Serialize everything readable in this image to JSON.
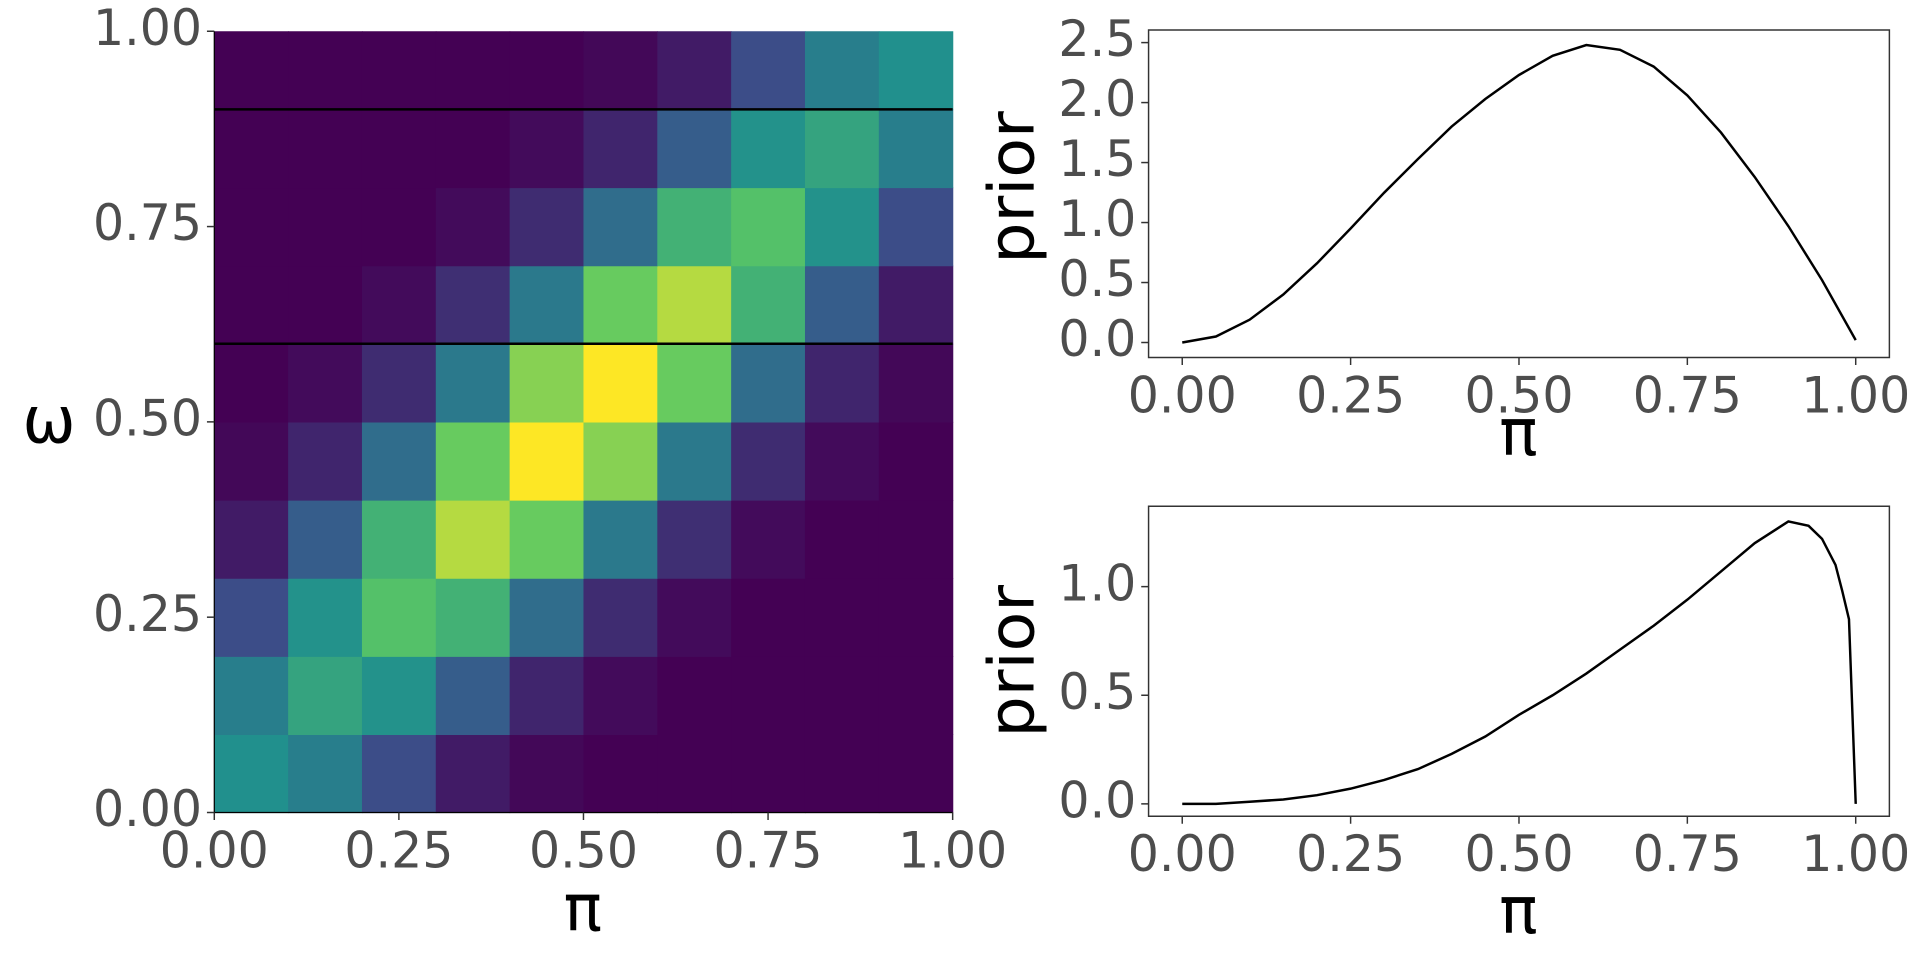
{
  "chart_data": [
    {
      "type": "heatmap",
      "x_label": "π",
      "y_label": "ω",
      "colormap": "viridis",
      "x": [
        0.05,
        0.15,
        0.25,
        0.35,
        0.45,
        0.55,
        0.65,
        0.75,
        0.85,
        0.95
      ],
      "y": [
        0.05,
        0.15,
        0.25,
        0.35,
        0.45,
        0.55,
        0.65,
        0.75,
        0.85,
        0.95
      ],
      "z": [
        [
          0.49,
          0.42,
          0.23,
          0.08,
          0.02,
          0.0,
          0,
          0,
          0,
          0
        ],
        [
          0.42,
          0.57,
          0.5,
          0.29,
          0.11,
          0.03,
          0.0,
          0,
          0,
          0
        ],
        [
          0.23,
          0.5,
          0.7,
          0.63,
          0.35,
          0.13,
          0.03,
          0.0,
          0,
          0
        ],
        [
          0.08,
          0.29,
          0.63,
          0.87,
          0.75,
          0.4,
          0.14,
          0.03,
          0.0,
          0
        ],
        [
          0.02,
          0.11,
          0.35,
          0.75,
          0.98,
          0.8,
          0.4,
          0.13,
          0.03,
          0.0
        ],
        [
          0.0,
          0.03,
          0.13,
          0.4,
          0.8,
          0.98,
          0.75,
          0.35,
          0.11,
          0.02
        ],
        [
          0,
          0.0,
          0.03,
          0.14,
          0.4,
          0.75,
          0.87,
          0.63,
          0.29,
          0.08
        ],
        [
          0,
          0,
          0.0,
          0.03,
          0.13,
          0.35,
          0.63,
          0.7,
          0.5,
          0.23
        ],
        [
          0,
          0,
          0,
          0.0,
          0.03,
          0.11,
          0.29,
          0.5,
          0.57,
          0.42
        ],
        [
          0,
          0,
          0,
          0,
          0.0,
          0.02,
          0.08,
          0.23,
          0.42,
          0.49
        ]
      ],
      "hlines": [
        0.9,
        0.6
      ],
      "hline_color": "#000000",
      "xlim": [
        0,
        1
      ],
      "ylim": [
        0,
        1
      ],
      "xticks": [
        {
          "value": 0,
          "label": "0.00"
        },
        0.25,
        {
          "value": 0.5,
          "label": "0.50"
        },
        0.75,
        {
          "value": 1,
          "label": "1.00"
        }
      ],
      "yticks": [
        {
          "value": 0,
          "label": "0.00"
        },
        0.25,
        {
          "value": 0.5,
          "label": "0.50"
        },
        0.75,
        {
          "value": 1,
          "label": "1.00"
        }
      ]
    },
    {
      "type": "line",
      "x_label": "π",
      "y_label": "prior",
      "color": "#000000",
      "x": [
        0,
        0.05,
        0.1,
        0.15,
        0.2,
        0.25,
        0.3,
        0.35,
        0.4,
        0.45,
        0.5,
        0.55,
        0.6,
        0.65,
        0.7,
        0.75,
        0.8,
        0.85,
        0.9,
        0.95,
        1
      ],
      "values": [
        0,
        0.05,
        0.19,
        0.4,
        0.66,
        0.95,
        1.25,
        1.53,
        1.8,
        2.03,
        2.23,
        2.39,
        2.48,
        2.44,
        2.3,
        2.06,
        1.75,
        1.38,
        0.97,
        0.52,
        0.02
      ],
      "xlim": [
        -0.05,
        1.05
      ],
      "ylim": [
        -0.125,
        2.605
      ],
      "xticks": [
        {
          "value": 0,
          "label": "0.00"
        },
        0.25,
        {
          "value": 0.5,
          "label": "0.50"
        },
        0.75,
        {
          "value": 1,
          "label": "1.00"
        }
      ],
      "yticks": [
        {
          "value": 0,
          "label": "0.0"
        },
        0.5,
        {
          "value": 1,
          "label": "1.0"
        },
        1.5,
        {
          "value": 2,
          "label": "2.0"
        },
        2.5
      ]
    },
    {
      "type": "line",
      "x_label": "π",
      "y_label": "prior",
      "color": "#000000",
      "x": [
        0,
        0.05,
        0.1,
        0.15,
        0.2,
        0.25,
        0.3,
        0.35,
        0.4,
        0.45,
        0.5,
        0.55,
        0.6,
        0.65,
        0.7,
        0.75,
        0.8,
        0.85,
        0.9,
        0.93,
        0.95,
        0.97,
        0.98,
        0.99,
        1
      ],
      "values": [
        0,
        0,
        0.01,
        0.02,
        0.04,
        0.07,
        0.11,
        0.16,
        0.23,
        0.31,
        0.41,
        0.5,
        0.6,
        0.71,
        0.82,
        0.94,
        1.07,
        1.2,
        1.3,
        1.28,
        1.22,
        1.1,
        0.98,
        0.85,
        0
      ],
      "xlim": [
        -0.05,
        1.05
      ],
      "ylim": [
        -0.057,
        1.37
      ],
      "xticks": [
        {
          "value": 0,
          "label": "0.00"
        },
        0.25,
        {
          "value": 0.5,
          "label": "0.50"
        },
        0.75,
        {
          "value": 1,
          "label": "1.00"
        }
      ],
      "yticks": [
        {
          "value": 0,
          "label": "0.0"
        },
        0.5,
        {
          "value": 1,
          "label": "1.0"
        }
      ]
    }
  ]
}
